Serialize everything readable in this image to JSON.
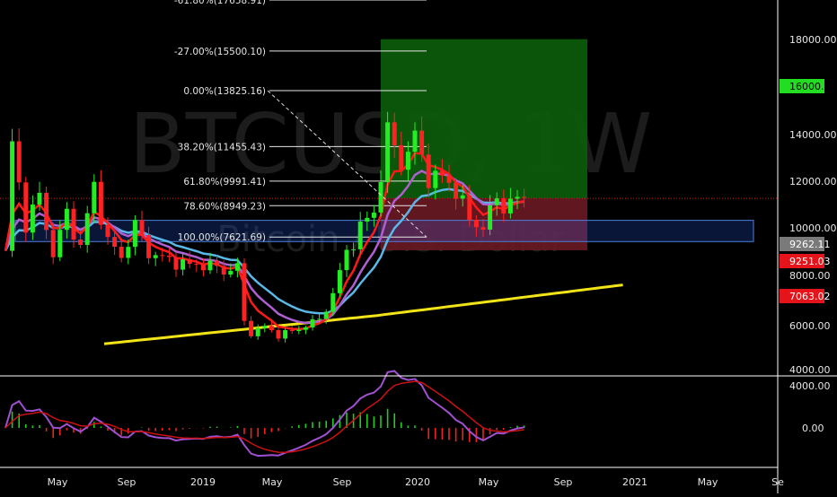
{
  "chart_data": {
    "type": "candlestick",
    "watermark": {
      "symbol": "BTCUSD, 1W",
      "subtitle": "Bitcoin / U.S. Dollar"
    },
    "x_labels": [
      "May",
      "Sep",
      "2019",
      "May",
      "Sep",
      "2020",
      "May",
      "Sep",
      "2021",
      "May",
      "Se"
    ],
    "price_axis": {
      "ticks": [
        "18000.00",
        "16000.00",
        "14000.00",
        "12000.00",
        "10000.00",
        "9262.11",
        "9251.03",
        "8000.00",
        "7063.02",
        "6000.00",
        "4000.00"
      ],
      "range": [
        3700,
        19400
      ]
    },
    "price_badges": [
      {
        "label": "16000.00",
        "value": 16000,
        "color": "#22dd22",
        "text_color": "#000000"
      },
      {
        "label": "9262.11",
        "value": 9262.11,
        "color": "#7a7a7a",
        "text_color": "#ffffff"
      },
      {
        "label": "9251.03",
        "value": 9251.03,
        "color": "#e5141b",
        "text_color": "#ffffff"
      },
      {
        "label": "7063.02",
        "value": 7063.02,
        "color": "#e5141b",
        "text_color": "#ffffff"
      }
    ],
    "fib_levels": [
      {
        "label": "-61.80%(17658.91)",
        "price": 17658.91
      },
      {
        "label": "-27.00%(15500.10)",
        "price": 15500.1
      },
      {
        "label": "0.00%(13825.16)",
        "price": 13825.16
      },
      {
        "label": "38.20%(11455.43)",
        "price": 11455.43
      },
      {
        "label": "61.80%(9991.41)",
        "price": 9991.41
      },
      {
        "label": "78.60%(8949.23)",
        "price": 8949.23
      },
      {
        "label": "100.00%(7621.69)",
        "price": 7621.69
      }
    ],
    "position": {
      "entry": 9262.11,
      "target": 16000,
      "stop": 7063.02,
      "profit_color": "#0b5e0b",
      "loss_color": "#6a1a22"
    },
    "support_zone": {
      "from": 7430,
      "to": 8330,
      "color": "#2962ff"
    },
    "indicator_axis": {
      "ticks": [
        "4000.00",
        "0.00"
      ]
    },
    "colors": {
      "up": "#22ee22",
      "down": "#ff2222",
      "ema_fast": "#ff1a1a",
      "ema_mid": "#b05fd0",
      "ema_slow": "#5ab8e8",
      "ma_long": "#f2e418",
      "macd": "#a050d0",
      "signal": "#cc1111",
      "hist_up": "#22cc22",
      "hist_down": "#ee2222"
    }
  }
}
